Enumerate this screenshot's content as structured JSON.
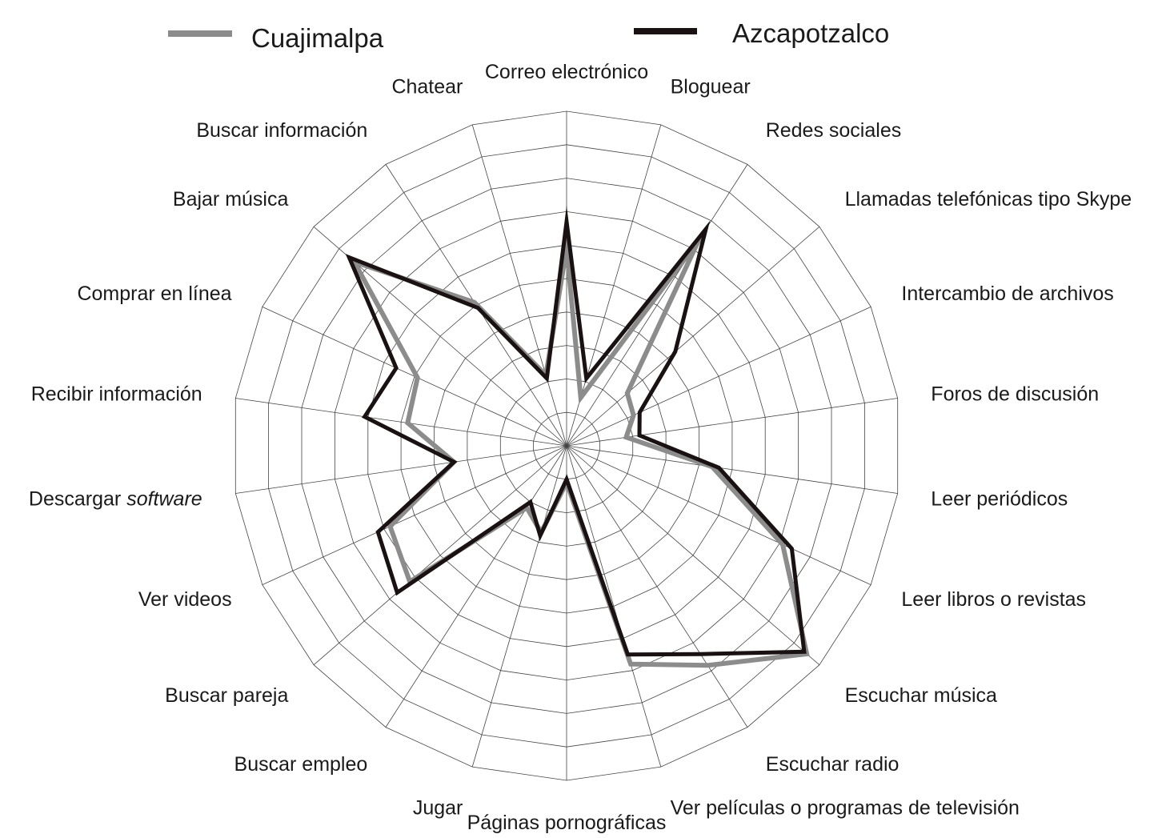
{
  "chart_data": {
    "type": "radar",
    "legend_position": "top",
    "grid": true,
    "rings": 10,
    "axes": [
      {
        "label": "Correo electrónico"
      },
      {
        "label": "Bloguear"
      },
      {
        "label": "Redes sociales"
      },
      {
        "label": "Llamadas telefónicas tipo Skype"
      },
      {
        "label": "Intercambio de archivos"
      },
      {
        "label": "Foros de discusión"
      },
      {
        "label": "Leer periódicos"
      },
      {
        "label": "Leer libros o revistas"
      },
      {
        "label": "Escuchar música"
      },
      {
        "label": "Escuchar radio"
      },
      {
        "label": "Ver películas o programas de televisión"
      },
      {
        "label": "Páginas pornográficas"
      },
      {
        "label": "Jugar"
      },
      {
        "label": "Buscar empleo"
      },
      {
        "label": "Buscar pareja"
      },
      {
        "label": "Ver videos"
      },
      {
        "label": "Descargar",
        "label_em": "software"
      },
      {
        "label": "Recibir información"
      },
      {
        "label": "Comprar en línea"
      },
      {
        "label": "Bajar música"
      },
      {
        "label": "Buscar información"
      },
      {
        "label": "Chatear"
      }
    ],
    "series": [
      {
        "name": "Cuajimalpa",
        "color": "#8c8c8c",
        "values": [
          5.9,
          1.5,
          7.3,
          2.4,
          2.2,
          1.8,
          4.4,
          7.1,
          9.5,
          7.8,
          6.8,
          1.1,
          2.7,
          2.2,
          6.2,
          5.8,
          3.4,
          4.8,
          4.9,
          8.4,
          5.1,
          2.2
        ]
      },
      {
        "name": "Azcapotzalco",
        "color": "#1a1212",
        "values": [
          6.7,
          2.1,
          7.7,
          4.3,
          2.4,
          2.2,
          4.6,
          7.4,
          9.4,
          7.4,
          6.5,
          1.0,
          2.8,
          2.0,
          6.7,
          6.2,
          3.4,
          6.1,
          5.6,
          8.6,
          4.9,
          2.1
        ]
      }
    ]
  }
}
